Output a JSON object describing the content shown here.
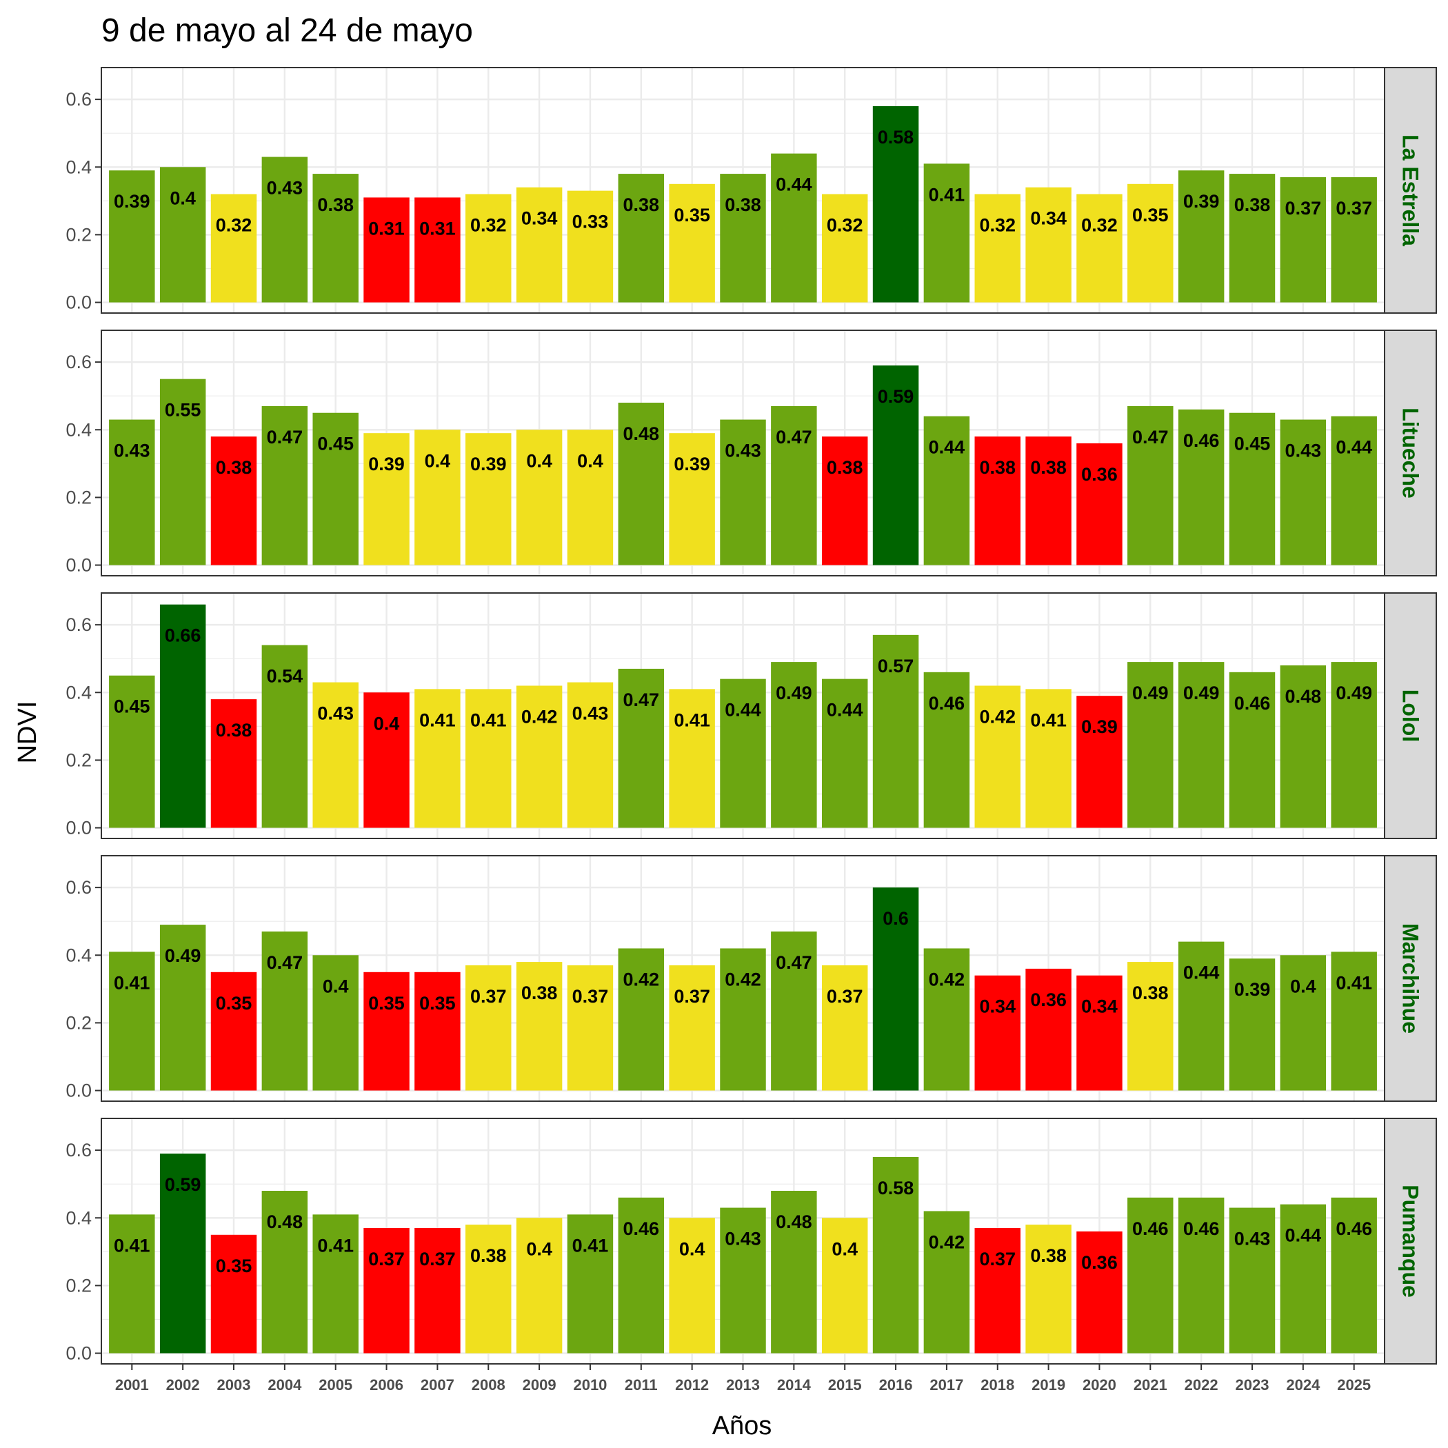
{
  "colors": {
    "red": "#ff0000",
    "yellow": "#f0e01e",
    "green": "#6ca611",
    "dark_green": "#006400",
    "strip_background": "#d9d9d9",
    "strip_text": "#006400",
    "grid": "#ebebeb"
  },
  "chart_data": {
    "type": "bar",
    "title": "9 de mayo al 24 de mayo",
    "xlabel": "Años",
    "ylabel": "NDVI",
    "ylim": [
      0,
      0.7
    ],
    "y_ticks": [
      "0.0",
      "0.2",
      "0.4",
      "0.6"
    ],
    "grid": true,
    "categories": [
      "2001",
      "2002",
      "2003",
      "2004",
      "2005",
      "2006",
      "2007",
      "2008",
      "2009",
      "2010",
      "2011",
      "2012",
      "2013",
      "2014",
      "2015",
      "2016",
      "2017",
      "2018",
      "2019",
      "2020",
      "2021",
      "2022",
      "2023",
      "2024",
      "2025"
    ],
    "series": [
      {
        "name": "La Estrella",
        "values": [
          0.39,
          0.4,
          0.32,
          0.43,
          0.38,
          0.31,
          0.31,
          0.32,
          0.34,
          0.33,
          0.38,
          0.35,
          0.38,
          0.44,
          0.32,
          0.58,
          0.41,
          0.32,
          0.34,
          0.32,
          0.35,
          0.39,
          0.38,
          0.37,
          0.37
        ],
        "labels": [
          "0.39",
          "0.4",
          "0.32",
          "0.43",
          "0.38",
          "0.31",
          "0.31",
          "0.32",
          "0.34",
          "0.33",
          "0.38",
          "0.35",
          "0.38",
          "0.44",
          "0.32",
          "0.58",
          "0.41",
          "0.32",
          "0.34",
          "0.32",
          "0.35",
          "0.39",
          "0.38",
          "0.37",
          "0.37"
        ],
        "colors": [
          "green",
          "green",
          "yellow",
          "green",
          "green",
          "red",
          "red",
          "yellow",
          "yellow",
          "yellow",
          "green",
          "yellow",
          "green",
          "green",
          "yellow",
          "dark_green",
          "green",
          "yellow",
          "yellow",
          "yellow",
          "yellow",
          "green",
          "green",
          "green",
          "green"
        ]
      },
      {
        "name": "Litueche",
        "values": [
          0.43,
          0.55,
          0.38,
          0.47,
          0.45,
          0.39,
          0.4,
          0.39,
          0.4,
          0.4,
          0.48,
          0.39,
          0.43,
          0.47,
          0.38,
          0.59,
          0.44,
          0.38,
          0.38,
          0.36,
          0.47,
          0.46,
          0.45,
          0.43,
          0.44
        ],
        "labels": [
          "0.43",
          "0.55",
          "0.38",
          "0.47",
          "0.45",
          "0.39",
          "0.4",
          "0.39",
          "0.4",
          "0.4",
          "0.48",
          "0.39",
          "0.43",
          "0.47",
          "0.38",
          "0.59",
          "0.44",
          "0.38",
          "0.38",
          "0.36",
          "0.47",
          "0.46",
          "0.45",
          "0.43",
          "0.44"
        ],
        "colors": [
          "green",
          "green",
          "red",
          "green",
          "green",
          "yellow",
          "yellow",
          "yellow",
          "yellow",
          "yellow",
          "green",
          "yellow",
          "green",
          "green",
          "red",
          "dark_green",
          "green",
          "red",
          "red",
          "red",
          "green",
          "green",
          "green",
          "green",
          "green"
        ]
      },
      {
        "name": "Lolol",
        "values": [
          0.45,
          0.66,
          0.38,
          0.54,
          0.43,
          0.4,
          0.41,
          0.41,
          0.42,
          0.43,
          0.47,
          0.41,
          0.44,
          0.49,
          0.44,
          0.57,
          0.46,
          0.42,
          0.41,
          0.39,
          0.49,
          0.49,
          0.46,
          0.48,
          0.49
        ],
        "labels": [
          "0.45",
          "0.66",
          "0.38",
          "0.54",
          "0.43",
          "0.4",
          "0.41",
          "0.41",
          "0.42",
          "0.43",
          "0.47",
          "0.41",
          "0.44",
          "0.49",
          "0.44",
          "0.57",
          "0.46",
          "0.42",
          "0.41",
          "0.39",
          "0.49",
          "0.49",
          "0.46",
          "0.48",
          "0.49"
        ],
        "colors": [
          "green",
          "dark_green",
          "red",
          "green",
          "yellow",
          "red",
          "yellow",
          "yellow",
          "yellow",
          "yellow",
          "green",
          "yellow",
          "green",
          "green",
          "green",
          "green",
          "green",
          "yellow",
          "yellow",
          "red",
          "green",
          "green",
          "green",
          "green",
          "green"
        ]
      },
      {
        "name": "Marchihue",
        "values": [
          0.41,
          0.49,
          0.35,
          0.47,
          0.4,
          0.35,
          0.35,
          0.37,
          0.38,
          0.37,
          0.42,
          0.37,
          0.42,
          0.47,
          0.37,
          0.6,
          0.42,
          0.34,
          0.36,
          0.34,
          0.38,
          0.44,
          0.39,
          0.4,
          0.41
        ],
        "labels": [
          "0.41",
          "0.49",
          "0.35",
          "0.47",
          "0.4",
          "0.35",
          "0.35",
          "0.37",
          "0.38",
          "0.37",
          "0.42",
          "0.37",
          "0.42",
          "0.47",
          "0.37",
          "0.6",
          "0.42",
          "0.34",
          "0.36",
          "0.34",
          "0.38",
          "0.44",
          "0.39",
          "0.4",
          "0.41"
        ],
        "colors": [
          "green",
          "green",
          "red",
          "green",
          "green",
          "red",
          "red",
          "yellow",
          "yellow",
          "yellow",
          "green",
          "yellow",
          "green",
          "green",
          "yellow",
          "dark_green",
          "green",
          "red",
          "red",
          "red",
          "yellow",
          "green",
          "green",
          "green",
          "green"
        ]
      },
      {
        "name": "Pumanque",
        "values": [
          0.41,
          0.59,
          0.35,
          0.48,
          0.41,
          0.37,
          0.37,
          0.38,
          0.4,
          0.41,
          0.46,
          0.4,
          0.43,
          0.48,
          0.4,
          0.58,
          0.42,
          0.37,
          0.38,
          0.36,
          0.46,
          0.46,
          0.43,
          0.44,
          0.46
        ],
        "labels": [
          "0.41",
          "0.59",
          "0.35",
          "0.48",
          "0.41",
          "0.37",
          "0.37",
          "0.38",
          "0.4",
          "0.41",
          "0.46",
          "0.4",
          "0.43",
          "0.48",
          "0.4",
          "0.58",
          "0.42",
          "0.37",
          "0.38",
          "0.36",
          "0.46",
          "0.46",
          "0.43",
          "0.44",
          "0.46"
        ],
        "colors": [
          "green",
          "dark_green",
          "red",
          "green",
          "green",
          "red",
          "red",
          "yellow",
          "yellow",
          "green",
          "green",
          "yellow",
          "green",
          "green",
          "yellow",
          "green",
          "green",
          "red",
          "yellow",
          "red",
          "green",
          "green",
          "green",
          "green",
          "green"
        ]
      }
    ]
  }
}
